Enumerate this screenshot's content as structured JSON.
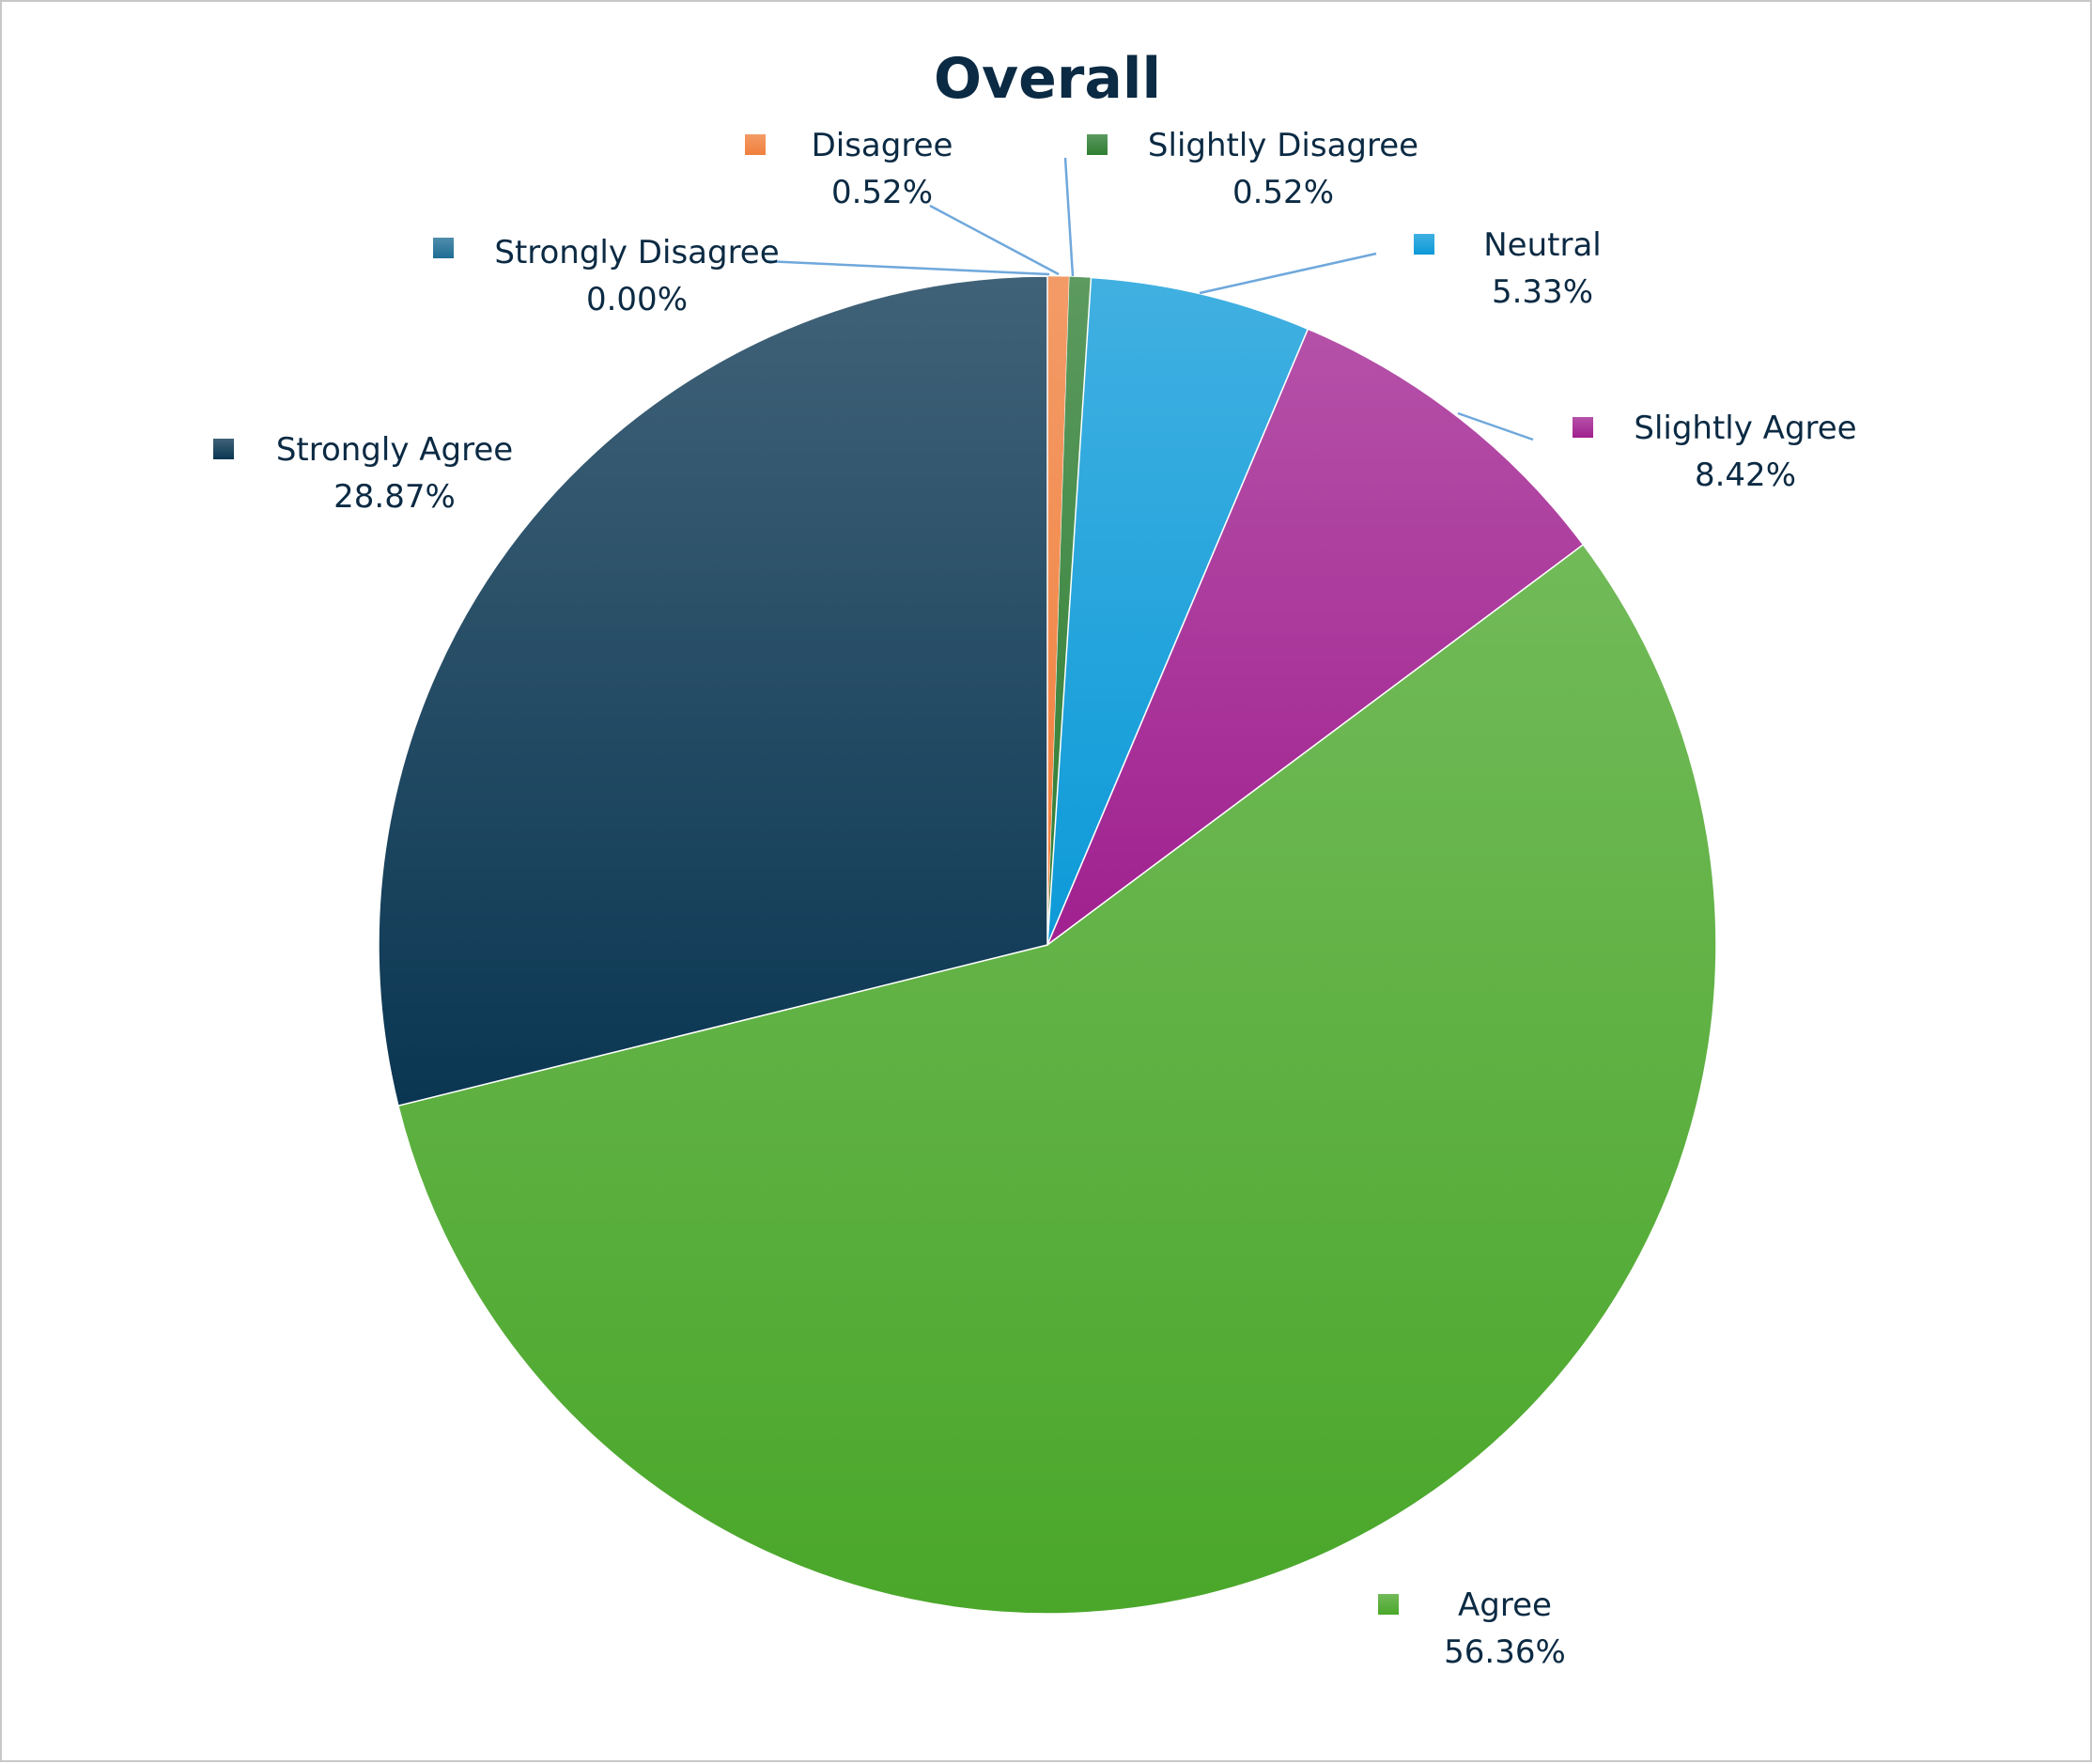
{
  "chart_data": {
    "type": "pie",
    "title": "Overall",
    "start_angle_deg": 0,
    "direction": "clockwise",
    "slices": [
      {
        "label": "Strongly Disagree",
        "value": 0.0,
        "display": "0.00%",
        "color": "#1f6d94"
      },
      {
        "label": "Disagree",
        "value": 0.52,
        "display": "0.52%",
        "color": "#f07f3c"
      },
      {
        "label": "Slightly Disagree",
        "value": 0.52,
        "display": "0.52%",
        "color": "#2e7d32"
      },
      {
        "label": "Neutral",
        "value": 5.33,
        "display": "5.33%",
        "color": "#0c9ad8"
      },
      {
        "label": "Slightly Agree",
        "value": 8.42,
        "display": "8.42%",
        "color": "#a0208f"
      },
      {
        "label": "Agree",
        "value": 56.36,
        "display": "56.36%",
        "color": "#4aa72a"
      },
      {
        "label": "Strongly Agree",
        "value": 28.87,
        "display": "28.87%",
        "color": "#0a3652"
      }
    ]
  }
}
